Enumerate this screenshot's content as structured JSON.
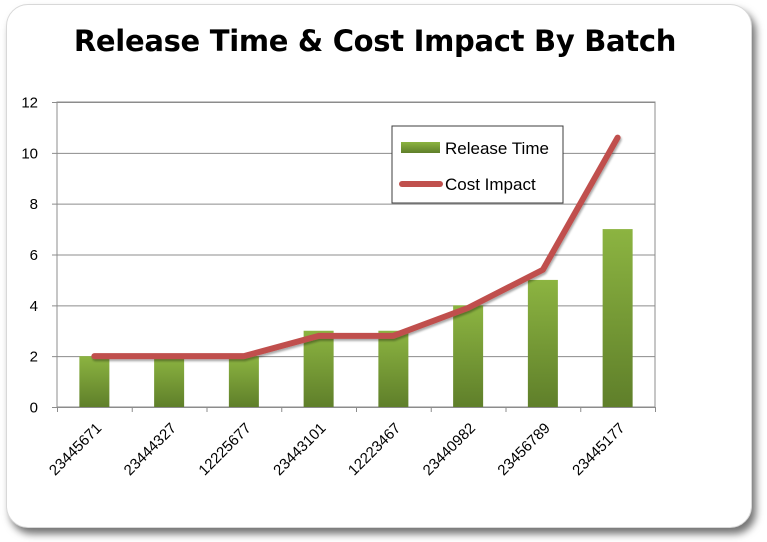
{
  "chart_data": {
    "type": "bar",
    "title": "Release Time & Cost Impact By Batch",
    "categories": [
      "23445671",
      "23444327",
      "12225677",
      "23443101",
      "12223467",
      "23440982",
      "23456789",
      "23445177"
    ],
    "series": [
      {
        "name": "Release Time",
        "type": "bar",
        "color": "#7a9e37",
        "values": [
          2,
          2,
          2,
          3,
          3,
          4,
          5,
          7
        ]
      },
      {
        "name": "Cost Impact",
        "type": "line",
        "color": "#c0504d",
        "values": [
          2,
          2,
          2,
          2.8,
          2.8,
          3.9,
          5.4,
          10.6
        ]
      }
    ],
    "ylim": [
      0,
      12
    ],
    "yticks": [
      "0",
      "2",
      "4",
      "6",
      "8",
      "10",
      "12"
    ],
    "grid": true,
    "legend_position": "top-right"
  }
}
